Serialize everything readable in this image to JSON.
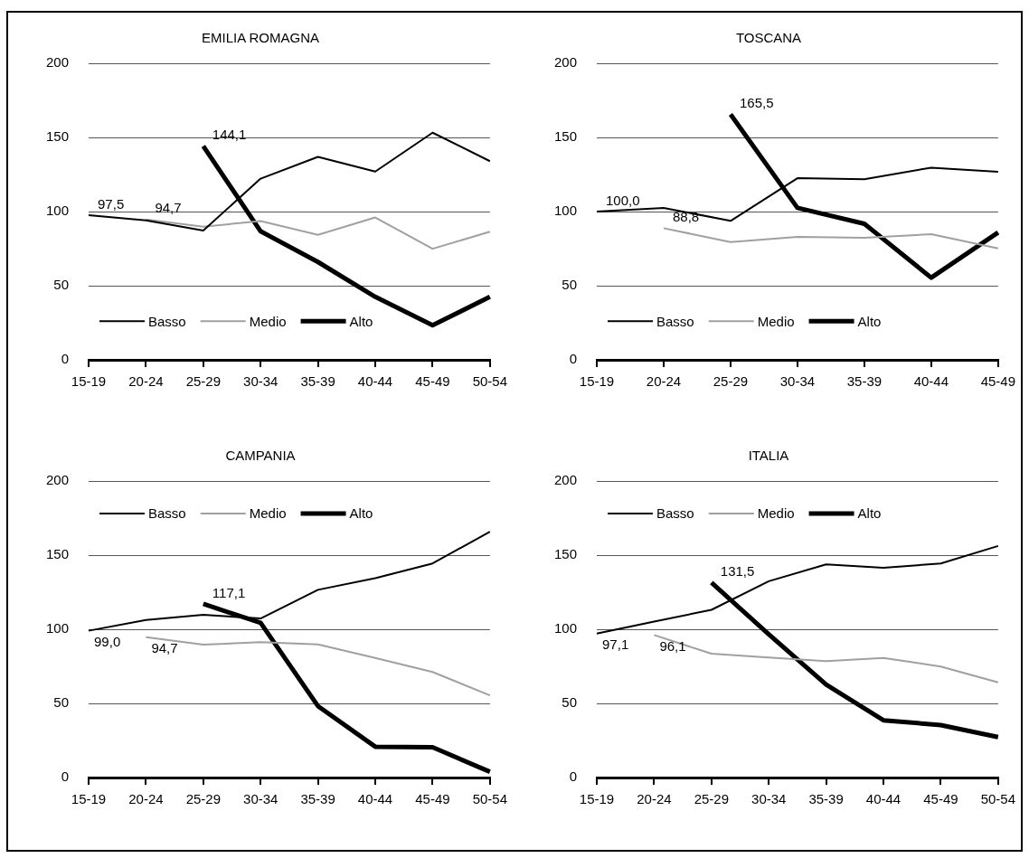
{
  "chart_data": [
    {
      "type": "line",
      "title": "EMILIA ROMAGNA",
      "categories": [
        "15-19",
        "20-24",
        "25-29",
        "30-34",
        "35-39",
        "40-44",
        "45-49",
        "50-54"
      ],
      "ylim": [
        0,
        200
      ],
      "yticks": [
        0,
        50,
        100,
        150,
        200
      ],
      "grid": "y",
      "legend": "bottom",
      "series": [
        {
          "name": "Basso",
          "color": "#000000",
          "values": [
            97.5,
            94.1,
            87.2,
            122.2,
            136.9,
            127,
            153.2,
            134
          ],
          "value_labels": [
            "97,5",
            null,
            null,
            null,
            null,
            null,
            null,
            null
          ]
        },
        {
          "name": "Medio",
          "color": "#a0a0a0",
          "values": [
            null,
            94.7,
            89.8,
            93.6,
            84.3,
            96,
            74.9,
            86.4
          ],
          "value_labels": [
            null,
            "94,7",
            null,
            null,
            null,
            null,
            null,
            null
          ]
        },
        {
          "name": "Alto",
          "color": "#000000",
          "values": [
            null,
            null,
            144.1,
            86.7,
            66,
            42.5,
            23.3,
            42.5
          ],
          "value_labels": [
            null,
            null,
            "144,1",
            null,
            null,
            null,
            null,
            null
          ]
        }
      ]
    },
    {
      "type": "line",
      "title": "TOSCANA",
      "categories": [
        "15-19",
        "20-24",
        "25-29",
        "30-34",
        "35-39",
        "40-44",
        "45-49"
      ],
      "ylim": [
        0,
        200
      ],
      "yticks": [
        0,
        50,
        100,
        150,
        200
      ],
      "grid": "y",
      "legend": "bottom",
      "series": [
        {
          "name": "Basso",
          "color": "#000000",
          "values": [
            100.0,
            102.5,
            93.7,
            122.5,
            121.8,
            129.6,
            126.8
          ],
          "value_labels": [
            "100,0",
            null,
            null,
            null,
            null,
            null,
            null
          ]
        },
        {
          "name": "Medio",
          "color": "#a0a0a0",
          "values": [
            null,
            88.8,
            79.4,
            83,
            82.3,
            84.7,
            75.1
          ],
          "value_labels": [
            null,
            "88,8",
            null,
            null,
            null,
            null,
            null
          ]
        },
        {
          "name": "Alto",
          "color": "#000000",
          "values": [
            null,
            null,
            165.5,
            102.5,
            91.8,
            55.4,
            85.9
          ],
          "value_labels": [
            null,
            null,
            "165,5",
            null,
            null,
            null,
            null
          ]
        }
      ]
    },
    {
      "type": "line",
      "title": "CAMPANIA",
      "categories": [
        "15-19",
        "20-24",
        "25-29",
        "30-34",
        "35-39",
        "40-44",
        "45-49",
        "50-54"
      ],
      "ylim": [
        0,
        200
      ],
      "yticks": [
        0,
        50,
        100,
        150,
        200
      ],
      "grid": "y",
      "legend": "top",
      "series": [
        {
          "name": "Basso",
          "color": "#000000",
          "values": [
            99.0,
            106.2,
            109.7,
            107.3,
            126.6,
            134.5,
            144.4,
            165.8
          ],
          "value_labels": [
            "99,0",
            null,
            null,
            null,
            null,
            null,
            null,
            null
          ]
        },
        {
          "name": "Medio",
          "color": "#a0a0a0",
          "values": [
            null,
            94.7,
            89.6,
            91.3,
            89.8,
            80.6,
            71.2,
            55.4
          ],
          "value_labels": [
            null,
            "94,7",
            null,
            null,
            null,
            null,
            null,
            null
          ]
        },
        {
          "name": "Alto",
          "color": "#000000",
          "values": [
            null,
            null,
            117.1,
            104.3,
            48.2,
            20.8,
            20.4,
            3.9
          ],
          "value_labels": [
            null,
            null,
            "117,1",
            null,
            null,
            null,
            null,
            null
          ]
        }
      ]
    },
    {
      "type": "line",
      "title": "ITALIA",
      "categories": [
        "15-19",
        "20-24",
        "25-29",
        "30-34",
        "35-39",
        "40-44",
        "45-49",
        "50-54"
      ],
      "ylim": [
        0,
        200
      ],
      "yticks": [
        0,
        50,
        100,
        150,
        200
      ],
      "grid": "y",
      "legend": "top",
      "series": [
        {
          "name": "Basso",
          "color": "#000000",
          "values": [
            97.1,
            105.2,
            113.1,
            132.4,
            143.8,
            141.4,
            144.4,
            156.2
          ],
          "value_labels": [
            "97,1",
            null,
            null,
            null,
            null,
            null,
            null,
            null
          ]
        },
        {
          "name": "Medio",
          "color": "#a0a0a0",
          "values": [
            null,
            96.1,
            83.5,
            80.9,
            78.5,
            80.7,
            74.9,
            64.2
          ],
          "value_labels": [
            null,
            "96,1",
            null,
            null,
            null,
            null,
            null,
            null
          ]
        },
        {
          "name": "Alto",
          "color": "#000000",
          "values": [
            null,
            null,
            131.5,
            96.6,
            62.7,
            38.6,
            35.4,
            27.3
          ],
          "value_labels": [
            null,
            null,
            "131,5",
            null,
            null,
            null,
            null,
            null
          ]
        }
      ]
    }
  ]
}
